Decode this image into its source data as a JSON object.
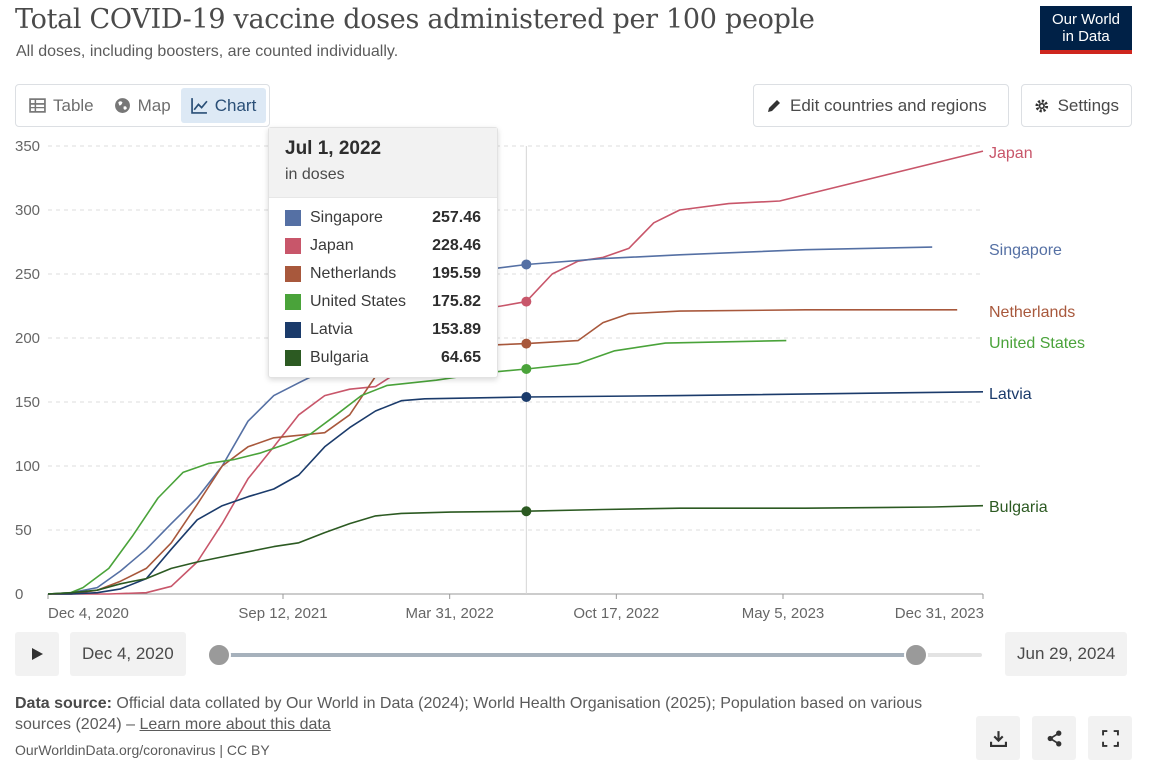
{
  "title": "Total COVID-19 vaccine doses administered per 100 people",
  "subtitle": "All doses, including boosters, are counted individually.",
  "logo": {
    "line1": "Our World",
    "line2": "in Data"
  },
  "tabs": [
    {
      "label": "Table",
      "icon": "table-icon"
    },
    {
      "label": "Map",
      "icon": "globe-icon"
    },
    {
      "label": "Chart",
      "icon": "line-chart-icon",
      "active": true
    }
  ],
  "buttons": {
    "edit": "Edit countries and regions",
    "settings": "Settings"
  },
  "tooltip": {
    "date": "Jul 1, 2022",
    "unit": "in doses",
    "rows": [
      {
        "name": "Singapore",
        "value": "257.46",
        "color": "#4c6a9c"
      },
      {
        "name": "Japan",
        "value": "228.46",
        "color": "#c15065"
      },
      {
        "name": "Netherlands",
        "value": "195.59",
        "color": "#a2559c"
      },
      {
        "name": "United States",
        "value": "175.82",
        "color": "#38aaba"
      },
      {
        "name": "Latvia",
        "value": "153.89",
        "color": "#00295b"
      },
      {
        "name": "Bulgaria",
        "value": "64.65",
        "color": "#286bbb"
      }
    ]
  },
  "timeline": {
    "start": "Dec 4, 2020",
    "end": "Jun 29, 2024",
    "range_fraction": 0.928
  },
  "source": {
    "label": "Data source:",
    "text": "Official data collated by Our World in Data (2024); World Health Organisation (2025); Population based on various sources (2024) –",
    "link": "Learn more about this data"
  },
  "footer": "OurWorldinData.org/coronavirus | CC BY",
  "chart_data": {
    "type": "line",
    "xlabel": "",
    "ylabel": "",
    "ylim": [
      0,
      350
    ],
    "yticks": [
      0,
      50,
      100,
      150,
      200,
      250,
      300,
      350
    ],
    "xticks": [
      "Dec 4, 2020",
      "Sep 12, 2021",
      "Mar 31, 2022",
      "Oct 17, 2022",
      "May 5, 2023",
      "Dec 31, 2023"
    ],
    "xrange": [
      "2020-12-04",
      "2023-12-31"
    ],
    "hover_date": "2022-07-01",
    "grid": true,
    "series": [
      {
        "name": "Japan",
        "color": "#c15065",
        "points": [
          [
            "2020-12-04",
            0
          ],
          [
            "2021-02-15",
            0
          ],
          [
            "2021-04-01",
            1
          ],
          [
            "2021-05-01",
            6
          ],
          [
            "2021-06-01",
            25
          ],
          [
            "2021-07-01",
            55
          ],
          [
            "2021-08-01",
            90
          ],
          [
            "2021-09-01",
            115
          ],
          [
            "2021-10-01",
            140
          ],
          [
            "2021-11-01",
            155
          ],
          [
            "2021-12-01",
            160
          ],
          [
            "2022-01-01",
            162
          ],
          [
            "2022-02-01",
            175
          ],
          [
            "2022-03-01",
            205
          ],
          [
            "2022-04-01",
            215
          ],
          [
            "2022-05-01",
            222
          ],
          [
            "2022-06-01",
            225
          ],
          [
            "2022-07-01",
            228.46
          ],
          [
            "2022-08-01",
            250
          ],
          [
            "2022-09-01",
            260
          ],
          [
            "2022-10-01",
            263
          ],
          [
            "2022-11-01",
            270
          ],
          [
            "2022-12-01",
            290
          ],
          [
            "2023-01-01",
            300
          ],
          [
            "2023-03-01",
            305
          ],
          [
            "2023-05-01",
            307
          ],
          [
            "2023-12-31",
            346
          ]
        ]
      },
      {
        "name": "Singapore",
        "color": "#4c6a9c",
        "points": [
          [
            "2020-12-04",
            0
          ],
          [
            "2021-01-01",
            1
          ],
          [
            "2021-02-01",
            5
          ],
          [
            "2021-03-01",
            18
          ],
          [
            "2021-04-01",
            35
          ],
          [
            "2021-05-01",
            55
          ],
          [
            "2021-06-01",
            75
          ],
          [
            "2021-07-01",
            100
          ],
          [
            "2021-08-01",
            135
          ],
          [
            "2021-09-01",
            155
          ],
          [
            "2021-10-01",
            165
          ],
          [
            "2021-11-01",
            175
          ],
          [
            "2021-12-01",
            195
          ],
          [
            "2022-01-01",
            225
          ],
          [
            "2022-02-01",
            240
          ],
          [
            "2022-04-01",
            250
          ],
          [
            "2022-07-01",
            257.46
          ],
          [
            "2022-10-01",
            262
          ],
          [
            "2023-01-01",
            265
          ],
          [
            "2023-06-01",
            269
          ],
          [
            "2023-10-31",
            271
          ]
        ]
      },
      {
        "name": "Netherlands",
        "color": "#a2559c",
        "points": [
          [
            "2020-12-04",
            0
          ],
          [
            "2021-01-01",
            0
          ],
          [
            "2021-02-01",
            3
          ],
          [
            "2021-03-01",
            10
          ],
          [
            "2021-04-01",
            20
          ],
          [
            "2021-05-01",
            40
          ],
          [
            "2021-06-01",
            70
          ],
          [
            "2021-07-01",
            100
          ],
          [
            "2021-08-01",
            115
          ],
          [
            "2021-09-01",
            122
          ],
          [
            "2021-10-01",
            124
          ],
          [
            "2021-11-01",
            126
          ],
          [
            "2021-12-01",
            140
          ],
          [
            "2022-01-01",
            170
          ],
          [
            "2022-02-01",
            185
          ],
          [
            "2022-03-01",
            192
          ],
          [
            "2022-05-01",
            194
          ],
          [
            "2022-07-01",
            195.59
          ],
          [
            "2022-09-01",
            198
          ],
          [
            "2022-10-01",
            212
          ],
          [
            "2022-11-01",
            219
          ],
          [
            "2023-01-01",
            221
          ],
          [
            "2023-06-01",
            222
          ],
          [
            "2023-11-30",
            222
          ]
        ]
      },
      {
        "name": "United States",
        "color": "#38aaba",
        "points": [
          [
            "2020-12-04",
            0
          ],
          [
            "2020-12-31",
            1
          ],
          [
            "2021-01-15",
            5
          ],
          [
            "2021-02-15",
            20
          ],
          [
            "2021-03-15",
            45
          ],
          [
            "2021-04-15",
            75
          ],
          [
            "2021-05-15",
            95
          ],
          [
            "2021-06-15",
            102
          ],
          [
            "2021-07-15",
            105
          ],
          [
            "2021-08-15",
            110
          ],
          [
            "2021-09-15",
            117
          ],
          [
            "2021-10-15",
            125
          ],
          [
            "2021-11-15",
            140
          ],
          [
            "2021-12-15",
            155
          ],
          [
            "2022-01-15",
            163
          ],
          [
            "2022-03-15",
            167
          ],
          [
            "2022-05-15",
            173
          ],
          [
            "2022-07-01",
            175.82
          ],
          [
            "2022-09-01",
            180
          ],
          [
            "2022-10-15",
            190
          ],
          [
            "2022-12-15",
            196
          ],
          [
            "2023-05-09",
            198
          ]
        ]
      },
      {
        "name": "Latvia",
        "color": "#00295b",
        "points": [
          [
            "2020-12-04",
            0
          ],
          [
            "2021-01-01",
            0
          ],
          [
            "2021-02-01",
            1
          ],
          [
            "2021-03-01",
            4
          ],
          [
            "2021-04-01",
            12
          ],
          [
            "2021-05-01",
            35
          ],
          [
            "2021-06-01",
            58
          ],
          [
            "2021-07-01",
            69
          ],
          [
            "2021-08-01",
            76
          ],
          [
            "2021-09-01",
            82
          ],
          [
            "2021-10-01",
            93
          ],
          [
            "2021-11-01",
            115
          ],
          [
            "2021-12-01",
            130
          ],
          [
            "2022-01-01",
            143
          ],
          [
            "2022-02-01",
            151
          ],
          [
            "2022-03-01",
            152.5
          ],
          [
            "2022-07-01",
            153.89
          ],
          [
            "2023-01-01",
            155
          ],
          [
            "2023-12-31",
            158
          ]
        ]
      },
      {
        "name": "Bulgaria",
        "color": "#286bbb",
        "points": [
          [
            "2020-12-04",
            0
          ],
          [
            "2021-01-01",
            1
          ],
          [
            "2021-02-01",
            3
          ],
          [
            "2021-03-01",
            8
          ],
          [
            "2021-04-01",
            12
          ],
          [
            "2021-05-01",
            20
          ],
          [
            "2021-06-01",
            25
          ],
          [
            "2021-07-01",
            29
          ],
          [
            "2021-08-01",
            33
          ],
          [
            "2021-09-01",
            37
          ],
          [
            "2021-10-01",
            40
          ],
          [
            "2021-11-01",
            48
          ],
          [
            "2021-12-01",
            55
          ],
          [
            "2022-01-01",
            61
          ],
          [
            "2022-02-01",
            63
          ],
          [
            "2022-04-01",
            64
          ],
          [
            "2022-07-01",
            64.65
          ],
          [
            "2022-10-01",
            66
          ],
          [
            "2023-01-01",
            67
          ],
          [
            "2023-06-01",
            67
          ],
          [
            "2023-11-01",
            68
          ],
          [
            "2023-12-31",
            69
          ]
        ]
      }
    ]
  }
}
